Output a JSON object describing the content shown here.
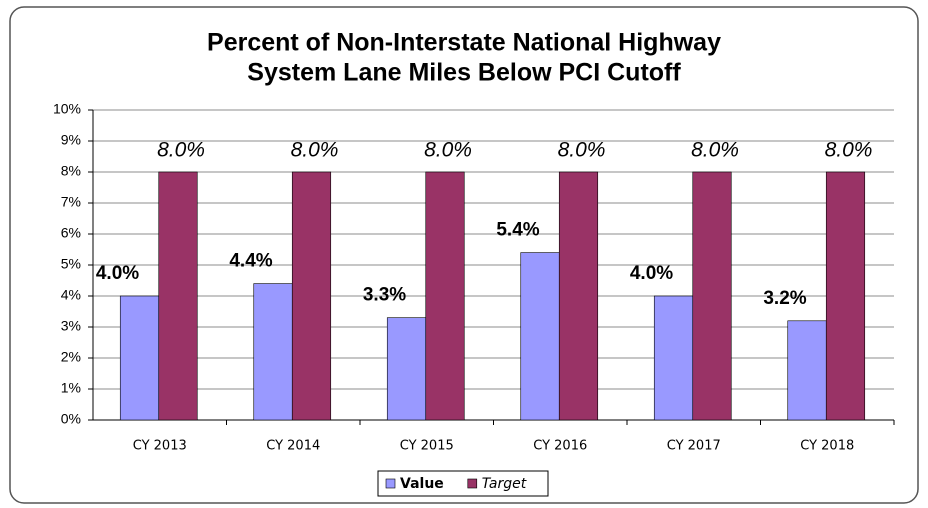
{
  "chart_data": {
    "type": "bar",
    "title": [
      "Percent of Non-Interstate National Highway",
      "System Lane Miles Below PCI Cutoff"
    ],
    "categories": [
      "CY 2013",
      "CY 2014",
      "CY 2015",
      "CY 2016",
      "CY 2017",
      "CY 2018"
    ],
    "series": [
      {
        "name": "Value",
        "color": "#9999ff",
        "values": [
          4.0,
          4.4,
          3.3,
          5.4,
          4.0,
          3.2
        ],
        "value_labels": [
          "4.0%",
          "4.4%",
          "3.3%",
          "5.4%",
          "4.0%",
          "3.2%"
        ]
      },
      {
        "name": "Target",
        "color": "#993366",
        "values": [
          8.0,
          8.0,
          8.0,
          8.0,
          8.0,
          8.0
        ],
        "value_labels": [
          "8.0%",
          "8.0%",
          "8.0%",
          "8.0%",
          "8.0%",
          "8.0%"
        ]
      }
    ],
    "ylim": [
      0,
      10
    ],
    "yticks": [
      {
        "value": 0,
        "label": "0%"
      },
      {
        "value": 1,
        "label": "1%"
      },
      {
        "value": 2,
        "label": "2%"
      },
      {
        "value": 3,
        "label": "3%"
      },
      {
        "value": 4,
        "label": "4%"
      },
      {
        "value": 5,
        "label": "5%"
      },
      {
        "value": 6,
        "label": "6%"
      },
      {
        "value": 7,
        "label": "7%"
      },
      {
        "value": 8,
        "label": "8%"
      },
      {
        "value": 9,
        "label": "9%"
      },
      {
        "value": 10,
        "label": "10%"
      }
    ],
    "grid": true,
    "legend": "bottom"
  }
}
